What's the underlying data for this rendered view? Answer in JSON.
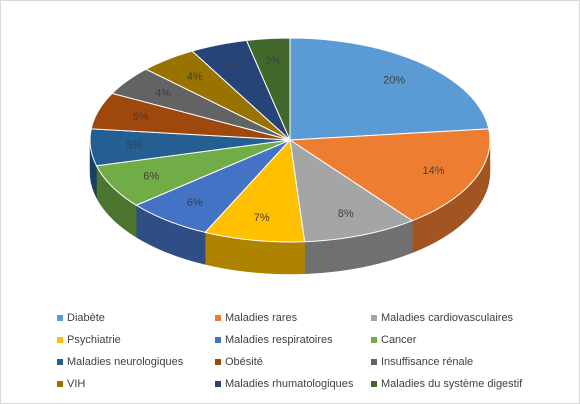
{
  "chart_data": {
    "type": "pie3d",
    "categories": [
      "Diabète",
      "Maladies rares",
      "Maladies cardiovasculaires",
      "Psychiatrie",
      "Maladies respiratoires",
      "Cancer",
      "Maladies neurologiques",
      "Obésité",
      "Insuffisance rénale",
      "VIH",
      "Maladies rhumatologiques",
      "Maladies du système digestif"
    ],
    "values": [
      20,
      14,
      8,
      7,
      6,
      6,
      5,
      5,
      4,
      4,
      4,
      3
    ],
    "value_labels": [
      "20%",
      "14%",
      "8%",
      "7%",
      "6%",
      "6%",
      "5%",
      "5%",
      "4%",
      "4%",
      "4%",
      "3%"
    ],
    "colors": [
      "#5b9bd5",
      "#ed7d31",
      "#a5a5a5",
      "#ffc000",
      "#4472c4",
      "#70ad47",
      "#255e91",
      "#9e480e",
      "#636363",
      "#997300",
      "#264478",
      "#43682b"
    ],
    "legend": "bottom"
  }
}
